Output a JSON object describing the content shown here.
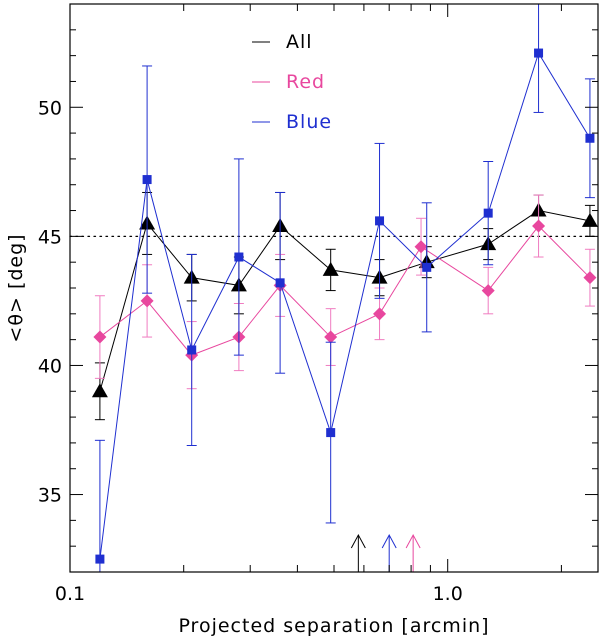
{
  "chart_data": {
    "type": "scatter",
    "title": "",
    "xlabel": "Projected separation [arcmin]",
    "ylabel": "<θ> [deg]",
    "xscale": "log",
    "xlim": [
      0.1,
      2.5
    ],
    "ylim": [
      32,
      54
    ],
    "x_ticks": [
      {
        "value": 0.1,
        "label": "0.1"
      },
      {
        "value": 1.0,
        "label": "1.0"
      }
    ],
    "y_ticks": [
      35,
      40,
      45,
      50
    ],
    "y_tick_labels": [
      "35",
      "40",
      "45",
      "50"
    ],
    "reference_line": {
      "y": 45,
      "style": "dotted"
    },
    "legend": {
      "position": "top-center"
    },
    "series": [
      {
        "name": "All",
        "color": "#000000",
        "marker": "triangle",
        "points": [
          {
            "x": 0.12,
            "y": 39.0,
            "err": 1.1
          },
          {
            "x": 0.16,
            "y": 45.5,
            "err": 1.2
          },
          {
            "x": 0.21,
            "y": 43.4,
            "err": 0.9
          },
          {
            "x": 0.28,
            "y": 43.1,
            "err": 1.1
          },
          {
            "x": 0.36,
            "y": 45.4,
            "err": 1.3
          },
          {
            "x": 0.49,
            "y": 43.7,
            "err": 0.8
          },
          {
            "x": 0.66,
            "y": 43.4,
            "err": 0.7
          },
          {
            "x": 0.88,
            "y": 44.0,
            "err": 0.6
          },
          {
            "x": 1.28,
            "y": 44.7,
            "err": 0.6
          },
          {
            "x": 1.74,
            "y": 46.0,
            "err": 0.6
          },
          {
            "x": 2.38,
            "y": 45.6,
            "err": 0.6
          }
        ]
      },
      {
        "name": "Red",
        "color": "#e8479e",
        "marker": "diamond",
        "points": [
          {
            "x": 0.12,
            "y": 41.1,
            "err": 1.6
          },
          {
            "x": 0.16,
            "y": 42.5,
            "err": 1.4
          },
          {
            "x": 0.21,
            "y": 40.4,
            "err": 1.3
          },
          {
            "x": 0.28,
            "y": 41.1,
            "err": 1.3
          },
          {
            "x": 0.36,
            "y": 43.1,
            "err": 1.2
          },
          {
            "x": 0.49,
            "y": 41.1,
            "err": 1.1
          },
          {
            "x": 0.66,
            "y": 42.0,
            "err": 1.0
          },
          {
            "x": 0.85,
            "y": 44.6,
            "err": 1.1
          },
          {
            "x": 1.28,
            "y": 42.9,
            "err": 0.9
          },
          {
            "x": 1.74,
            "y": 45.4,
            "err": 1.2
          },
          {
            "x": 2.38,
            "y": 43.4,
            "err": 1.1
          }
        ]
      },
      {
        "name": "Blue",
        "color": "#1f2fd0",
        "marker": "square",
        "points": [
          {
            "x": 0.12,
            "y": 32.5,
            "err": 4.6
          },
          {
            "x": 0.16,
            "y": 47.2,
            "err": 4.4
          },
          {
            "x": 0.21,
            "y": 40.6,
            "err": 3.7
          },
          {
            "x": 0.28,
            "y": 44.2,
            "err": 3.8
          },
          {
            "x": 0.36,
            "y": 43.2,
            "err": 3.5
          },
          {
            "x": 0.49,
            "y": 37.4,
            "err": 3.5
          },
          {
            "x": 0.66,
            "y": 45.6,
            "err": 3.0
          },
          {
            "x": 0.88,
            "y": 43.8,
            "err": 2.5
          },
          {
            "x": 1.28,
            "y": 45.9,
            "err": 2.0
          },
          {
            "x": 1.74,
            "y": 52.1,
            "err": 2.3
          },
          {
            "x": 2.38,
            "y": 48.8,
            "err": 2.3
          }
        ]
      }
    ],
    "annotations": [
      {
        "type": "arrow",
        "x": 0.58,
        "color": "#000000"
      },
      {
        "type": "arrow",
        "x": 0.7,
        "color": "#1f2fd0"
      },
      {
        "type": "arrow",
        "x": 0.81,
        "color": "#e8479e"
      }
    ]
  }
}
